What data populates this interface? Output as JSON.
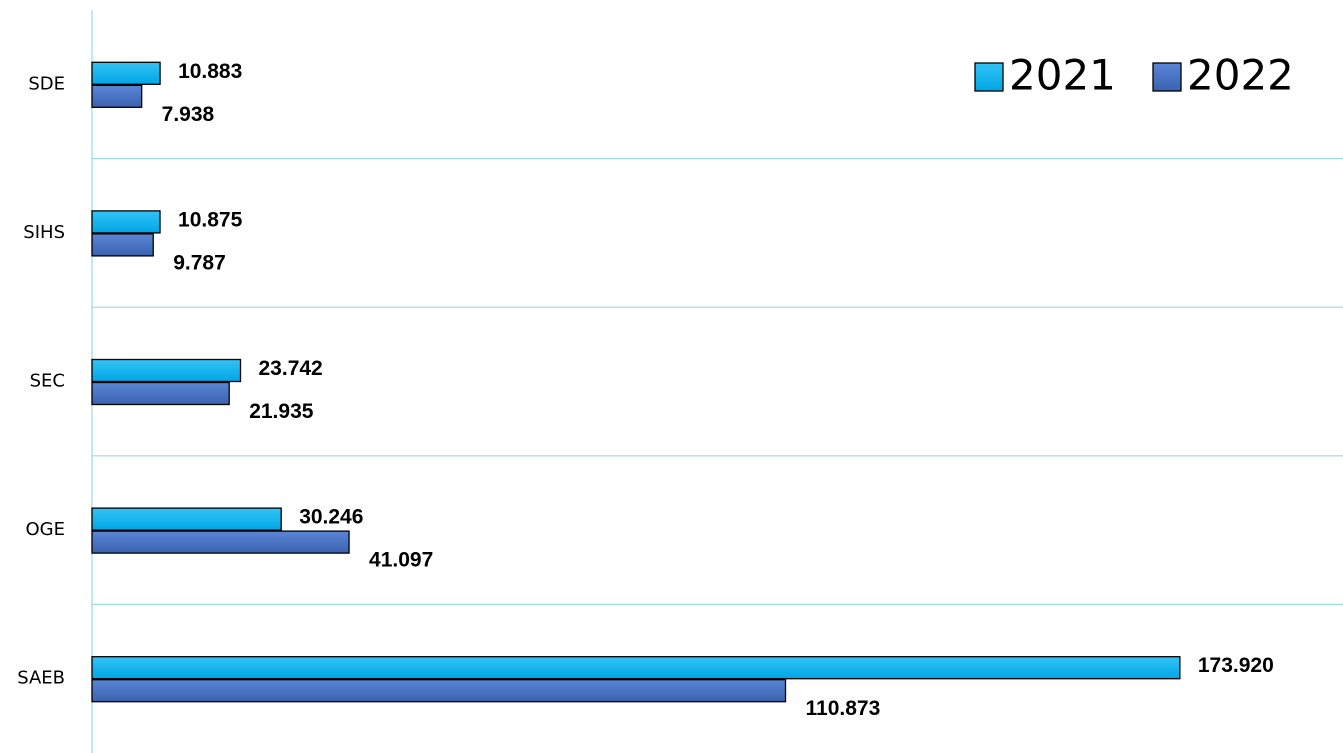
{
  "chart_data": {
    "type": "hbar",
    "categories": [
      "SDE",
      "SIHS",
      "SEC",
      "OGE",
      "SAEB"
    ],
    "series": [
      {
        "name": "2021",
        "color": "#00b0f0",
        "values": [
          10883,
          10875,
          23742,
          30246,
          173920
        ],
        "value_labels": [
          "10.883",
          "10.875",
          "23.742",
          "30.246",
          "173.920"
        ]
      },
      {
        "name": "2022",
        "color": "#4472c4",
        "values": [
          7938,
          9787,
          21935,
          41097,
          110873
        ],
        "value_labels": [
          "7.938",
          "9.787",
          "21.935",
          "41.097",
          "110.873"
        ]
      }
    ],
    "xlim": [
      0,
      200000
    ],
    "legend": "upper right"
  }
}
